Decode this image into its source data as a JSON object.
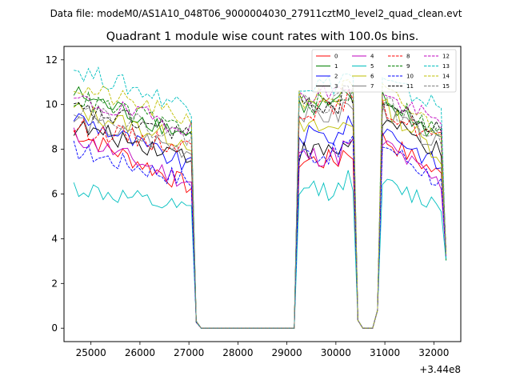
{
  "suptitle": "Data file: modeM0/AS1A10_048T06_9000004030_27911cztM0_level2_quad_clean.evt",
  "chart_data": {
    "type": "line",
    "title": "Quadrant 1 module wise count rates with 100.0s bins.",
    "xlabel": "",
    "ylabel": "",
    "x_offset_label": "+3.44e8",
    "xlim": [
      24450,
      32550
    ],
    "ylim": [
      -0.6,
      12.6
    ],
    "x_ticks": [
      25000,
      26000,
      27000,
      28000,
      29000,
      30000,
      31000,
      32000
    ],
    "x_tick_labels": [
      "25000",
      "26000",
      "27000",
      "28000",
      "29000",
      "30000",
      "31000",
      "32000"
    ],
    "y_ticks": [
      0,
      2,
      4,
      6,
      8,
      10,
      12
    ],
    "y_tick_labels": [
      "0",
      "2",
      "4",
      "6",
      "8",
      "10",
      "12"
    ],
    "grid": false,
    "legend_position": "top-right",
    "legend_columns": 4,
    "segments": [
      {
        "start": 24650,
        "end": 27050,
        "ramp_to": 27150
      },
      {
        "start": 29150,
        "end": 30350,
        "ramp_from": 29150,
        "ramp_to": 30450
      },
      {
        "start": 30950,
        "end": 32250,
        "ramp_from": 30850
      }
    ],
    "series": [
      {
        "name": "0",
        "color": "#ff0000",
        "dash": "solid",
        "level_seg1": [
          8.8,
          6.3
        ],
        "level_seg2": 7.5,
        "level_seg3": [
          8.5,
          6.8
        ]
      },
      {
        "name": "1",
        "color": "#008000",
        "dash": "solid",
        "level_seg1": [
          10.5,
          8.6
        ],
        "level_seg2": 9.9,
        "level_seg3": [
          10.2,
          8.5
        ]
      },
      {
        "name": "2",
        "color": "#0000ff",
        "dash": "solid",
        "level_seg1": [
          9.5,
          7.2
        ],
        "level_seg2": 8.6,
        "level_seg3": [
          9.0,
          7.2
        ]
      },
      {
        "name": "3",
        "color": "#000000",
        "dash": "solid",
        "level_seg1": [
          9.0,
          7.7
        ],
        "level_seg2": 7.9,
        "level_seg3": [
          9.3,
          7.8
        ]
      },
      {
        "name": "4",
        "color": "#bf00bf",
        "dash": "solid",
        "level_seg1": [
          8.6,
          6.5
        ],
        "level_seg2": 7.7,
        "level_seg3": [
          8.3,
          6.4
        ]
      },
      {
        "name": "5",
        "color": "#00bfbf",
        "dash": "solid",
        "level_seg1": [
          6.3,
          5.2
        ],
        "level_seg2": 6.2,
        "level_seg3": [
          6.4,
          5.5
        ]
      },
      {
        "name": "6",
        "color": "#bfbf00",
        "dash": "solid",
        "level_seg1": [
          9.8,
          8.3
        ],
        "level_seg2": 8.9,
        "level_seg3": [
          10.0,
          7.7
        ]
      },
      {
        "name": "7",
        "color": "#808080",
        "dash": "solid",
        "level_seg1": [
          9.3,
          7.9
        ],
        "level_seg2": 9.5,
        "level_seg3": [
          9.8,
          8.1
        ]
      },
      {
        "name": "8",
        "color": "#ff0000",
        "dash": "dashed",
        "level_seg1": [
          9.0,
          8.1
        ],
        "level_seg2": 9.8,
        "level_seg3": [
          9.8,
          8.4
        ]
      },
      {
        "name": "9",
        "color": "#008000",
        "dash": "dashed",
        "level_seg1": [
          10.3,
          8.9
        ],
        "level_seg2": 10.0,
        "level_seg3": [
          10.4,
          8.7
        ]
      },
      {
        "name": "10",
        "color": "#0000ff",
        "dash": "dashed",
        "level_seg1": [
          8.0,
          6.6
        ],
        "level_seg2": 7.8,
        "level_seg3": [
          8.3,
          6.5
        ]
      },
      {
        "name": "11",
        "color": "#000000",
        "dash": "dashed",
        "level_seg1": [
          9.8,
          8.7
        ],
        "level_seg2": 10.0,
        "level_seg3": [
          10.1,
          8.7
        ]
      },
      {
        "name": "12",
        "color": "#bf00bf",
        "dash": "dashed",
        "level_seg1": [
          10.2,
          9.0
        ],
        "level_seg2": 10.5,
        "level_seg3": [
          10.4,
          9.1
        ]
      },
      {
        "name": "13",
        "color": "#00bfbf",
        "dash": "dashed",
        "level_seg1": [
          11.6,
          9.9
        ],
        "level_seg2": 10.9,
        "level_seg3": [
          11.0,
          9.9
        ]
      },
      {
        "name": "14",
        "color": "#bfbf00",
        "dash": "dashed",
        "level_seg1": [
          10.8,
          9.3
        ],
        "level_seg2": 10.3,
        "level_seg3": [
          10.6,
          8.8
        ]
      },
      {
        "name": "15",
        "color": "#808080",
        "dash": "dashed",
        "level_seg1": [
          9.9,
          8.5
        ],
        "level_seg2": 10.1,
        "level_seg3": [
          10.1,
          8.4
        ]
      }
    ]
  }
}
